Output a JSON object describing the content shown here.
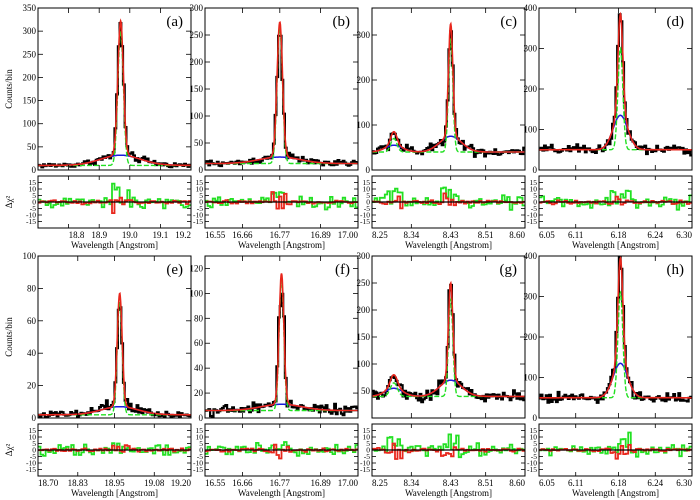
{
  "colors": {
    "data": "#000000",
    "total_model": "#e8261c",
    "broad": "#1a1adc",
    "narrow": "#22e022",
    "zero_line": "#000000"
  },
  "chart_data": [
    {
      "label": "(a)",
      "type": "line",
      "xlabel": "Wavelength [Angstrom]",
      "ylabel": "Counts/bin",
      "resid_label": "Δχ²",
      "xlim": [
        18.7,
        19.2
      ],
      "ylim": [
        0,
        350
      ],
      "xticks": [
        18.8,
        18.9,
        19.0,
        19.1,
        19.2
      ],
      "xtick_labels": [
        "18.8",
        "18.9",
        "19.0",
        "19.1",
        "19.2"
      ],
      "yticks": [
        0,
        50,
        100,
        150,
        200,
        250,
        300,
        350
      ],
      "ytick_labels": [
        "0",
        "50",
        "100",
        "150",
        "200",
        "250",
        "300",
        "350"
      ],
      "resid_ylim": [
        -20,
        20
      ],
      "resid_ticks": [
        -15,
        -10,
        -5,
        0,
        5,
        10,
        15
      ],
      "resid_tick_labels": [
        "-15",
        "-10",
        "-5",
        "0",
        "5",
        "10",
        "15"
      ],
      "baseline": 10,
      "lines": [
        {
          "center": 18.97,
          "narrow_amp": 290,
          "narrow_sigma": 0.009,
          "broad_amp": 22,
          "broad_sigma": 0.065
        }
      ],
      "green_resid_amp": 12
    },
    {
      "label": "(b)",
      "type": "line",
      "xlabel": "Wavelength [Angstrom]",
      "ylabel": "",
      "resid_label": "",
      "xlim": [
        16.55,
        17.0
      ],
      "ylim": [
        0,
        300
      ],
      "xticks": [
        16.55,
        16.66,
        16.77,
        16.89,
        17.0
      ],
      "xtick_labels": [
        "16.55",
        "16.66",
        "16.77",
        "16.89",
        "17.00"
      ],
      "yticks": [
        0,
        50,
        100,
        150,
        200,
        250,
        300
      ],
      "ytick_labels": [
        "0",
        "50",
        "100",
        "150",
        "200",
        "250",
        "300"
      ],
      "resid_ylim": [
        -20,
        20
      ],
      "resid_ticks": [
        -15,
        -10,
        -5,
        0,
        5,
        10,
        15
      ],
      "resid_tick_labels": [
        "-15",
        "-10",
        "-5",
        "0",
        "5",
        "10",
        "15"
      ],
      "baseline": 12,
      "lines": [
        {
          "center": 16.77,
          "narrow_amp": 250,
          "narrow_sigma": 0.008,
          "broad_amp": 12,
          "broad_sigma": 0.06
        }
      ],
      "green_resid_amp": 9
    },
    {
      "label": "(c)",
      "type": "line",
      "xlabel": "Wavelength [Angstrom]",
      "ylabel": "",
      "resid_label": "",
      "xlim": [
        8.25,
        8.6
      ],
      "ylim": [
        0,
        360
      ],
      "xticks": [
        8.25,
        8.34,
        8.43,
        8.51,
        8.6
      ],
      "xtick_labels": [
        "8.25",
        "8.34",
        "8.43",
        "8.51",
        "8.60"
      ],
      "yticks": [
        0,
        100,
        200,
        300
      ],
      "ytick_labels": [
        "0",
        "100",
        "200",
        "300"
      ],
      "resid_ylim": [
        -20,
        20
      ],
      "resid_ticks": [
        -15,
        -10,
        -5,
        0,
        5,
        10,
        15
      ],
      "resid_tick_labels": [
        "-15",
        "-10",
        "-5",
        "0",
        "5",
        "10",
        "15"
      ],
      "baseline": 40,
      "lines": [
        {
          "center": 8.43,
          "narrow_amp": 250,
          "narrow_sigma": 0.005,
          "broad_amp": 35,
          "broad_sigma": 0.025
        },
        {
          "center": 8.3,
          "narrow_amp": 30,
          "narrow_sigma": 0.007,
          "broad_amp": 15,
          "broad_sigma": 0.02
        }
      ],
      "green_resid_amp": 10
    },
    {
      "label": "(d)",
      "type": "line",
      "xlabel": "Wavelength [Angstrom]",
      "ylabel": "",
      "resid_label": "",
      "xlim": [
        6.05,
        6.3
      ],
      "ylim": [
        0,
        400
      ],
      "xticks": [
        6.05,
        6.11,
        6.18,
        6.24,
        6.3
      ],
      "xtick_labels": [
        "6.05",
        "6.11",
        "6.18",
        "6.24",
        "6.30"
      ],
      "yticks": [
        0,
        100,
        200,
        300,
        400
      ],
      "ytick_labels": [
        "0",
        "100",
        "200",
        "300",
        "400"
      ],
      "resid_ylim": [
        -20,
        20
      ],
      "resid_ticks": [
        -15,
        -10,
        -5,
        0,
        5,
        10,
        15
      ],
      "resid_tick_labels": [
        "-15",
        "-10",
        "-5",
        "0",
        "5",
        "10",
        "15"
      ],
      "baseline": 50,
      "lines": [
        {
          "center": 6.183,
          "narrow_amp": 250,
          "narrow_sigma": 0.004,
          "broad_amp": 85,
          "broad_sigma": 0.012
        }
      ],
      "green_resid_amp": 11
    },
    {
      "label": "(e)",
      "type": "line",
      "xlabel": "Wavelength [Angstrom]",
      "ylabel": "Counts/bin",
      "resid_label": "Δχ²",
      "xlim": [
        18.7,
        19.2
      ],
      "ylim": [
        0,
        100
      ],
      "xticks": [
        18.7,
        18.83,
        18.95,
        19.08,
        19.2
      ],
      "xtick_labels": [
        "18.70",
        "18.83",
        "18.95",
        "19.08",
        "19.20"
      ],
      "yticks": [
        0,
        20,
        40,
        60,
        80,
        100
      ],
      "ytick_labels": [
        "0",
        "20",
        "40",
        "60",
        "80",
        "100"
      ],
      "resid_ylim": [
        -20,
        20
      ],
      "resid_ticks": [
        -15,
        -10,
        -5,
        0,
        5,
        10,
        15
      ],
      "resid_tick_labels": [
        "-15",
        "-10",
        "-5",
        "0",
        "5",
        "10",
        "15"
      ],
      "baseline": 2,
      "lines": [
        {
          "center": 18.967,
          "narrow_amp": 70,
          "narrow_sigma": 0.008,
          "broad_amp": 5,
          "broad_sigma": 0.06
        }
      ],
      "green_resid_amp": 6
    },
    {
      "label": "(f)",
      "type": "line",
      "xlabel": "Wavelength [Angstrom]",
      "ylabel": "",
      "resid_label": "",
      "xlim": [
        16.55,
        17.0
      ],
      "ylim": [
        0,
        130
      ],
      "xticks": [
        16.55,
        16.66,
        16.77,
        16.89,
        17.0
      ],
      "xtick_labels": [
        "16.55",
        "16.66",
        "16.77",
        "16.89",
        "17.00"
      ],
      "yticks": [
        0,
        20,
        40,
        60,
        80,
        100,
        120
      ],
      "ytick_labels": [
        "0",
        "20",
        "40",
        "60",
        "80",
        "100",
        "120"
      ],
      "resid_ylim": [
        -20,
        20
      ],
      "resid_ticks": [
        -15,
        -10,
        -5,
        0,
        5,
        10,
        15
      ],
      "resid_tick_labels": [
        "-15",
        "-10",
        "-5",
        "0",
        "5",
        "10",
        "15"
      ],
      "baseline": 6,
      "lines": [
        {
          "center": 16.775,
          "narrow_amp": 105,
          "narrow_sigma": 0.007,
          "broad_amp": 5,
          "broad_sigma": 0.06
        }
      ],
      "green_resid_amp": 5
    },
    {
      "label": "(g)",
      "type": "line",
      "xlabel": "Wavelength [Angstrom]",
      "ylabel": "",
      "resid_label": "",
      "xlim": [
        8.25,
        8.6
      ],
      "ylim": [
        0,
        300
      ],
      "xticks": [
        8.25,
        8.34,
        8.43,
        8.51,
        8.6
      ],
      "xtick_labels": [
        "8.25",
        "8.34",
        "8.43",
        "8.51",
        "8.60"
      ],
      "yticks": [
        50,
        100,
        150,
        200,
        250,
        300
      ],
      "ytick_labels": [
        "50",
        "100",
        "150",
        "200",
        "250",
        "300"
      ],
      "resid_ylim": [
        -20,
        20
      ],
      "resid_ticks": [
        -15,
        -10,
        -5,
        0,
        5,
        10,
        15
      ],
      "resid_tick_labels": [
        "-15",
        "-10",
        "-5",
        "0",
        "5",
        "10",
        "15"
      ],
      "baseline": 40,
      "lines": [
        {
          "center": 8.43,
          "narrow_amp": 180,
          "narrow_sigma": 0.005,
          "broad_amp": 30,
          "broad_sigma": 0.025
        },
        {
          "center": 8.3,
          "narrow_amp": 25,
          "narrow_sigma": 0.008,
          "broad_amp": 15,
          "broad_sigma": 0.02
        }
      ],
      "green_resid_amp": 8
    },
    {
      "label": "(h)",
      "type": "line",
      "xlabel": "Wavelength [Angstrom]",
      "ylabel": "",
      "resid_label": "",
      "xlim": [
        6.05,
        6.3
      ],
      "ylim": [
        0,
        400
      ],
      "xticks": [
        6.05,
        6.11,
        6.18,
        6.24,
        6.3
      ],
      "xtick_labels": [
        "6.05",
        "6.11",
        "6.18",
        "6.24",
        "6.30"
      ],
      "yticks": [
        0,
        100,
        200,
        300,
        400
      ],
      "ytick_labels": [
        "0",
        "100",
        "200",
        "300",
        "400"
      ],
      "resid_ylim": [
        -20,
        20
      ],
      "resid_ticks": [
        -15,
        -10,
        -5,
        0,
        5,
        10,
        15
      ],
      "resid_tick_labels": [
        "-15",
        "-10",
        "-5",
        "0",
        "5",
        "10",
        "15"
      ],
      "baseline": 50,
      "lines": [
        {
          "center": 6.183,
          "narrow_amp": 260,
          "narrow_sigma": 0.004,
          "broad_amp": 85,
          "broad_sigma": 0.012
        }
      ],
      "green_resid_amp": 10
    }
  ]
}
